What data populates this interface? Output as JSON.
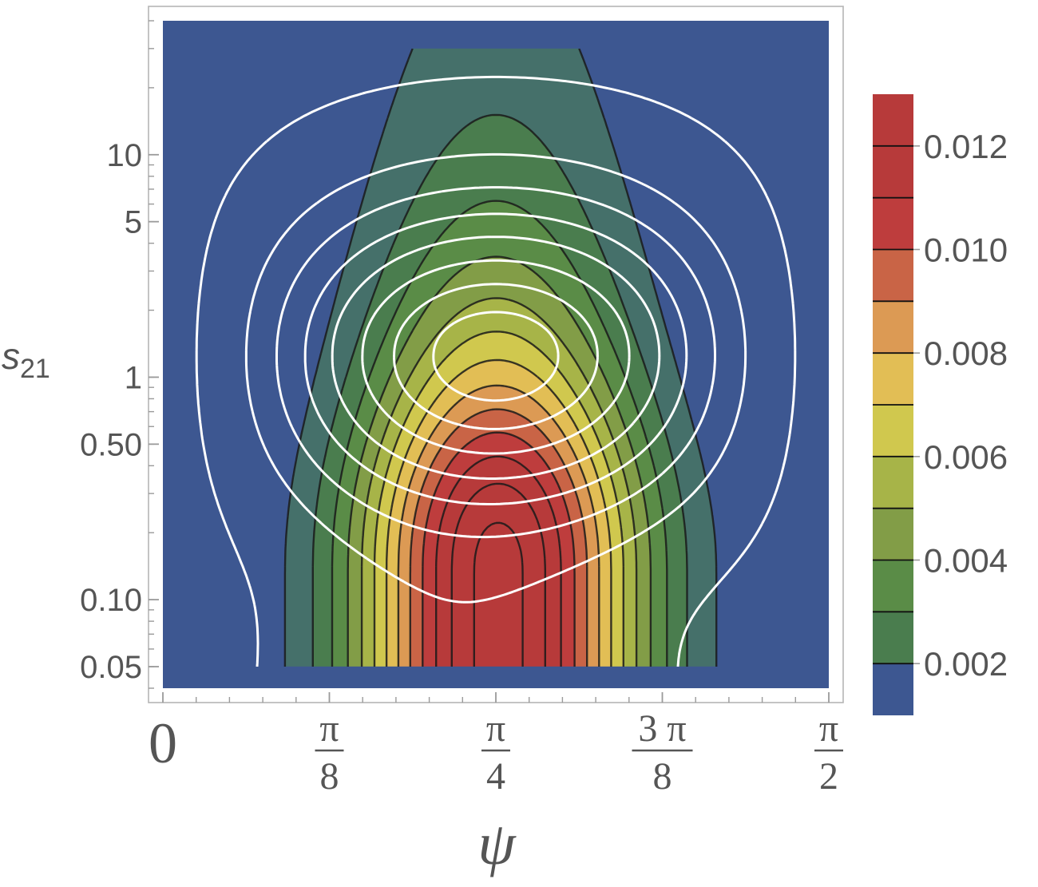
{
  "chart_data": {
    "type": "heatmap",
    "title": "",
    "xlabel": "ψ",
    "ylabel": "s",
    "ylabel_sub": "21",
    "x_scale": "linear",
    "y_scale": "log",
    "xlim": [
      0,
      1.5708
    ],
    "ylim": [
      0.04,
      40
    ],
    "x_ticks": [
      {
        "value": 0,
        "num": "0",
        "den": ""
      },
      {
        "value": 0.3927,
        "num": "π",
        "den": "8"
      },
      {
        "value": 0.7854,
        "num": "π",
        "den": "4"
      },
      {
        "value": 1.1781,
        "num": "3 π",
        "den": "8"
      },
      {
        "value": 1.5708,
        "num": "π",
        "den": "2"
      }
    ],
    "y_ticks": [
      {
        "value": 0.05,
        "label": "0.05"
      },
      {
        "value": 0.1,
        "label": "0.10"
      },
      {
        "value": 0.5,
        "label": "0.50"
      },
      {
        "value": 1,
        "label": "1"
      },
      {
        "value": 5,
        "label": "5"
      },
      {
        "value": 10,
        "label": "10"
      }
    ],
    "data_region": {
      "x": [
        0,
        1.5708
      ],
      "y": [
        0.05,
        30
      ]
    },
    "field_model": {
      "peak_value": 0.0134,
      "peak_psi": 0.7,
      "peak_s": 0.13
    },
    "contour_levels": [
      0.001,
      0.002,
      0.003,
      0.004,
      0.005,
      0.006,
      0.007,
      0.008,
      0.009,
      0.01,
      0.011,
      0.012,
      0.013
    ],
    "band_colors": [
      "#3d5791",
      "#45706a",
      "#4a7d4e",
      "#5a8c47",
      "#829d47",
      "#a7b448",
      "#d0c84e",
      "#e2be55",
      "#dc9a54",
      "#c96446",
      "#be3d3d",
      "#b73a3a",
      "#b73a3a"
    ],
    "colorbar": {
      "range": [
        0.001,
        0.013
      ],
      "ticks": [
        {
          "value": 0.002,
          "label": "0.002"
        },
        {
          "value": 0.004,
          "label": "0.004"
        },
        {
          "value": 0.006,
          "label": "0.006"
        },
        {
          "value": 0.008,
          "label": "0.008"
        },
        {
          "value": 0.01,
          "label": "0.010"
        },
        {
          "value": 0.012,
          "label": "0.012"
        }
      ]
    },
    "solid_contour_color": "#1a1a1a",
    "dashed_contour_color": "#ffffff",
    "grid": false,
    "legend": "colorbar-right"
  }
}
